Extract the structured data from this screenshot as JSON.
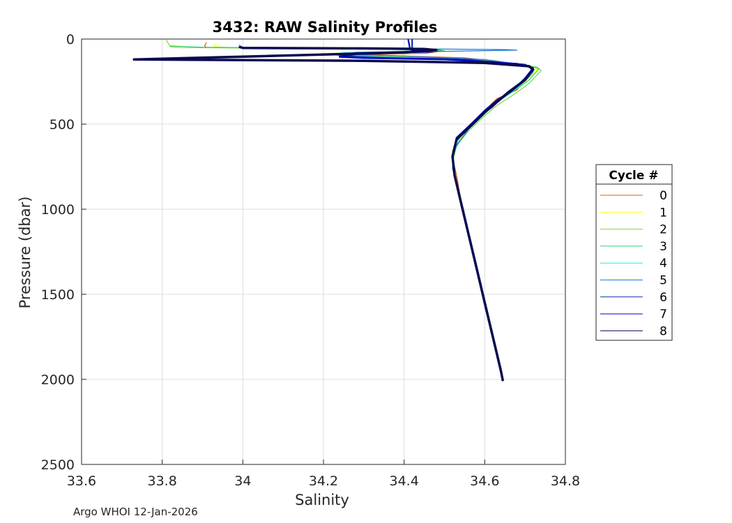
{
  "chart_data": {
    "type": "line",
    "title": "3432: RAW Salinity Profiles",
    "xlabel": "Salinity",
    "ylabel": "Pressure (dbar)",
    "xlim": [
      33.6,
      34.8
    ],
    "ylim": [
      0,
      2500
    ],
    "y_reversed": true,
    "grid": true,
    "xticks": [
      "33.6",
      "33.8",
      "34",
      "34.2",
      "34.4",
      "34.6",
      "34.8"
    ],
    "yticks": [
      "0",
      "500",
      "1000",
      "1500",
      "2000",
      "2500"
    ],
    "legend": {
      "title": "Cycle #",
      "placement": "right-outside"
    },
    "series": [
      {
        "name": "0",
        "color": "#d95f0e",
        "points": [
          [
            33.91,
            20
          ],
          [
            33.905,
            40
          ],
          [
            33.91,
            50
          ],
          [
            34.3,
            55
          ],
          [
            34.48,
            58
          ],
          [
            34.5,
            70
          ],
          [
            34.45,
            85
          ],
          [
            34.3,
            90
          ],
          [
            34.4,
            100
          ],
          [
            34.55,
            110
          ],
          [
            34.7,
            150
          ],
          [
            34.72,
            170
          ],
          [
            34.7,
            230
          ],
          [
            34.68,
            300
          ],
          [
            34.63,
            350
          ],
          [
            34.6,
            420
          ],
          [
            34.57,
            500
          ],
          [
            34.53,
            600
          ],
          [
            34.52,
            700
          ],
          [
            34.53,
            800
          ],
          [
            34.545,
            1000
          ],
          [
            34.565,
            1200
          ],
          [
            34.585,
            1400
          ],
          [
            34.605,
            1600
          ],
          [
            34.625,
            1800
          ],
          [
            34.645,
            2010
          ]
        ]
      },
      {
        "name": "1",
        "color": "#ffff00",
        "points": [
          [
            33.93,
            25
          ],
          [
            33.93,
            45
          ],
          [
            33.97,
            50
          ],
          [
            34.3,
            55
          ],
          [
            34.46,
            60
          ],
          [
            34.49,
            72
          ],
          [
            34.2,
            85
          ],
          [
            34.25,
            95
          ],
          [
            34.4,
            105
          ],
          [
            34.6,
            120
          ],
          [
            34.72,
            160
          ],
          [
            34.73,
            180
          ],
          [
            34.7,
            250
          ],
          [
            34.66,
            320
          ],
          [
            34.62,
            380
          ],
          [
            34.59,
            460
          ],
          [
            34.55,
            550
          ],
          [
            34.52,
            650
          ],
          [
            34.52,
            750
          ],
          [
            34.535,
            900
          ],
          [
            34.55,
            1050
          ],
          [
            34.57,
            1250
          ],
          [
            34.59,
            1450
          ],
          [
            34.61,
            1650
          ],
          [
            34.63,
            1850
          ],
          [
            34.645,
            2010
          ]
        ]
      },
      {
        "name": "2",
        "color": "#7fd43b",
        "points": [
          [
            33.81,
            5
          ],
          [
            33.82,
            45
          ],
          [
            33.85,
            50
          ],
          [
            34.1,
            55
          ],
          [
            34.4,
            62
          ],
          [
            34.48,
            70
          ],
          [
            34.2,
            88
          ],
          [
            34.3,
            98
          ],
          [
            34.45,
            110
          ],
          [
            34.62,
            125
          ],
          [
            34.73,
            165
          ],
          [
            34.74,
            185
          ],
          [
            34.71,
            260
          ],
          [
            34.67,
            330
          ],
          [
            34.63,
            390
          ],
          [
            34.6,
            450
          ],
          [
            34.56,
            540
          ],
          [
            34.525,
            640
          ],
          [
            34.52,
            760
          ],
          [
            34.535,
            880
          ],
          [
            34.555,
            1080
          ],
          [
            34.575,
            1280
          ],
          [
            34.595,
            1480
          ],
          [
            34.615,
            1680
          ],
          [
            34.635,
            1880
          ],
          [
            34.645,
            2010
          ]
        ]
      },
      {
        "name": "3",
        "color": "#2ed36b",
        "points": [
          [
            33.82,
            40
          ],
          [
            33.9,
            48
          ],
          [
            34.2,
            55
          ],
          [
            34.42,
            60
          ],
          [
            34.5,
            68
          ],
          [
            34.22,
            90
          ],
          [
            34.25,
            100
          ],
          [
            34.5,
            115
          ],
          [
            34.7,
            150
          ],
          [
            34.735,
            175
          ],
          [
            34.71,
            240
          ],
          [
            34.67,
            310
          ],
          [
            34.63,
            370
          ],
          [
            34.6,
            440
          ],
          [
            34.56,
            530
          ],
          [
            34.53,
            630
          ],
          [
            34.52,
            720
          ],
          [
            34.53,
            850
          ],
          [
            34.55,
            1040
          ],
          [
            34.57,
            1240
          ],
          [
            34.59,
            1440
          ],
          [
            34.61,
            1640
          ],
          [
            34.63,
            1840
          ],
          [
            34.645,
            2010
          ]
        ]
      },
      {
        "name": "4",
        "color": "#2ee6d0",
        "points": [
          [
            33.99,
            30
          ],
          [
            34.0,
            50
          ],
          [
            34.1,
            55
          ],
          [
            34.38,
            60
          ],
          [
            34.48,
            66
          ],
          [
            34.25,
            80
          ],
          [
            34.22,
            92
          ],
          [
            34.35,
            105
          ],
          [
            34.6,
            130
          ],
          [
            34.72,
            165
          ],
          [
            34.72,
            200
          ],
          [
            34.69,
            270
          ],
          [
            34.65,
            340
          ],
          [
            34.61,
            410
          ],
          [
            34.58,
            480
          ],
          [
            34.54,
            570
          ],
          [
            34.52,
            680
          ],
          [
            34.525,
            800
          ],
          [
            34.545,
            980
          ],
          [
            34.565,
            1180
          ],
          [
            34.585,
            1380
          ],
          [
            34.605,
            1580
          ],
          [
            34.625,
            1780
          ],
          [
            34.645,
            2010
          ]
        ]
      },
      {
        "name": "5",
        "color": "#1f78d8",
        "points": [
          [
            34.0,
            55
          ],
          [
            34.45,
            58
          ],
          [
            34.55,
            60
          ],
          [
            34.65,
            62
          ],
          [
            34.68,
            65
          ],
          [
            34.5,
            72
          ],
          [
            34.28,
            78
          ],
          [
            34.25,
            90
          ],
          [
            34.4,
            100
          ],
          [
            34.6,
            120
          ],
          [
            34.71,
            160
          ],
          [
            34.72,
            190
          ],
          [
            34.69,
            260
          ],
          [
            34.65,
            330
          ],
          [
            34.62,
            400
          ],
          [
            34.58,
            470
          ],
          [
            34.55,
            560
          ],
          [
            34.52,
            660
          ],
          [
            34.52,
            760
          ],
          [
            34.535,
            900
          ],
          [
            34.55,
            1060
          ],
          [
            34.57,
            1260
          ],
          [
            34.59,
            1460
          ],
          [
            34.61,
            1660
          ],
          [
            34.63,
            1860
          ],
          [
            34.645,
            2010
          ]
        ]
      },
      {
        "name": "6",
        "color": "#0a2fa8",
        "points": [
          [
            34.42,
            0
          ],
          [
            34.42,
            60
          ],
          [
            34.45,
            70
          ],
          [
            34.47,
            75
          ],
          [
            34.3,
            82
          ],
          [
            34.28,
            90
          ],
          [
            34.24,
            100
          ],
          [
            34.35,
            110
          ],
          [
            34.55,
            120
          ],
          [
            34.7,
            150
          ],
          [
            34.72,
            175
          ],
          [
            34.7,
            240
          ],
          [
            34.67,
            300
          ],
          [
            34.63,
            370
          ],
          [
            34.6,
            430
          ],
          [
            34.57,
            500
          ],
          [
            34.53,
            590
          ],
          [
            34.52,
            690
          ],
          [
            34.525,
            800
          ],
          [
            34.54,
            950
          ],
          [
            34.56,
            1150
          ],
          [
            34.58,
            1350
          ],
          [
            34.6,
            1550
          ],
          [
            34.62,
            1750
          ],
          [
            34.64,
            1950
          ],
          [
            34.645,
            2010
          ]
        ]
      },
      {
        "name": "7",
        "color": "#0000c8",
        "points": [
          [
            34.41,
            0
          ],
          [
            34.415,
            60
          ],
          [
            34.43,
            70
          ],
          [
            34.46,
            75
          ],
          [
            34.3,
            85
          ],
          [
            34.26,
            95
          ],
          [
            34.24,
            105
          ],
          [
            34.3,
            112
          ],
          [
            34.5,
            120
          ],
          [
            34.68,
            145
          ],
          [
            34.72,
            170
          ],
          [
            34.7,
            230
          ],
          [
            34.67,
            300
          ],
          [
            34.63,
            360
          ],
          [
            34.6,
            420
          ],
          [
            34.57,
            490
          ],
          [
            34.53,
            580
          ],
          [
            34.52,
            680
          ],
          [
            34.525,
            790
          ],
          [
            34.54,
            940
          ],
          [
            34.56,
            1140
          ],
          [
            34.58,
            1340
          ],
          [
            34.6,
            1540
          ],
          [
            34.62,
            1740
          ],
          [
            34.64,
            1940
          ],
          [
            34.645,
            2010
          ]
        ]
      },
      {
        "name": "8",
        "color": "#0a0a50",
        "points": [
          [
            33.99,
            45
          ],
          [
            34.0,
            52
          ],
          [
            34.3,
            55
          ],
          [
            34.45,
            58
          ],
          [
            34.48,
            65
          ],
          [
            34.4,
            78
          ],
          [
            34.3,
            85
          ],
          [
            33.73,
            120
          ],
          [
            34.1,
            125
          ],
          [
            34.3,
            128
          ],
          [
            34.6,
            140
          ],
          [
            34.71,
            160
          ],
          [
            34.72,
            180
          ],
          [
            34.7,
            240
          ],
          [
            34.66,
            310
          ],
          [
            34.63,
            370
          ],
          [
            34.6,
            430
          ],
          [
            34.57,
            500
          ],
          [
            34.53,
            590
          ],
          [
            34.52,
            690
          ],
          [
            34.525,
            800
          ],
          [
            34.54,
            950
          ],
          [
            34.56,
            1150
          ],
          [
            34.58,
            1350
          ],
          [
            34.6,
            1550
          ],
          [
            34.62,
            1750
          ],
          [
            34.64,
            1950
          ],
          [
            34.645,
            2010
          ]
        ]
      }
    ]
  },
  "footer": "Argo WHOI 12-Jan-2026"
}
